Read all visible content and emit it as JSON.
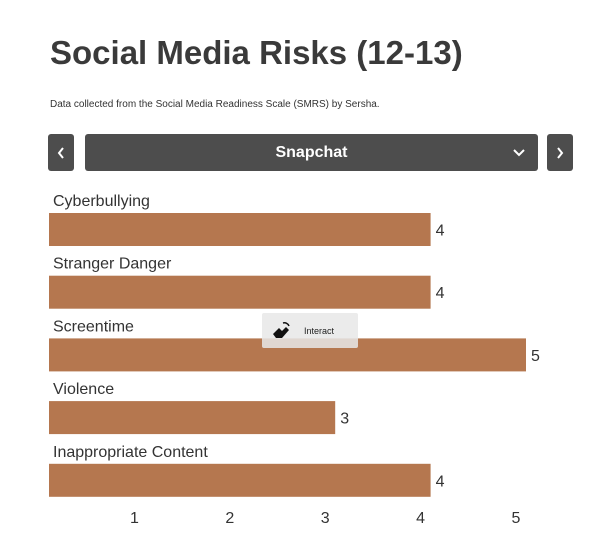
{
  "header": {
    "title": "Social Media Risks (12-13)",
    "subtitle": "Data collected from the Social Media Readiness Scale (SMRS) by Sersha."
  },
  "controls": {
    "selected_platform": "Snapchat",
    "prev_icon": "chevron-left-icon",
    "next_icon": "chevron-right-icon",
    "dropdown_icon": "chevron-down-icon"
  },
  "overlay": {
    "label": "Interact",
    "icon": "hand-pointer-icon"
  },
  "colors": {
    "bar": "#b5774f",
    "control_bg": "#4d4d4d"
  },
  "chart_data": {
    "type": "bar",
    "orientation": "horizontal",
    "categories": [
      "Cyberbullying",
      "Stranger Danger",
      "Screentime",
      "Violence",
      "Inappropriate Content"
    ],
    "values": [
      4,
      4,
      5,
      3,
      4
    ],
    "xticks": [
      1,
      2,
      3,
      4,
      5
    ],
    "xlim": [
      0,
      5
    ]
  }
}
